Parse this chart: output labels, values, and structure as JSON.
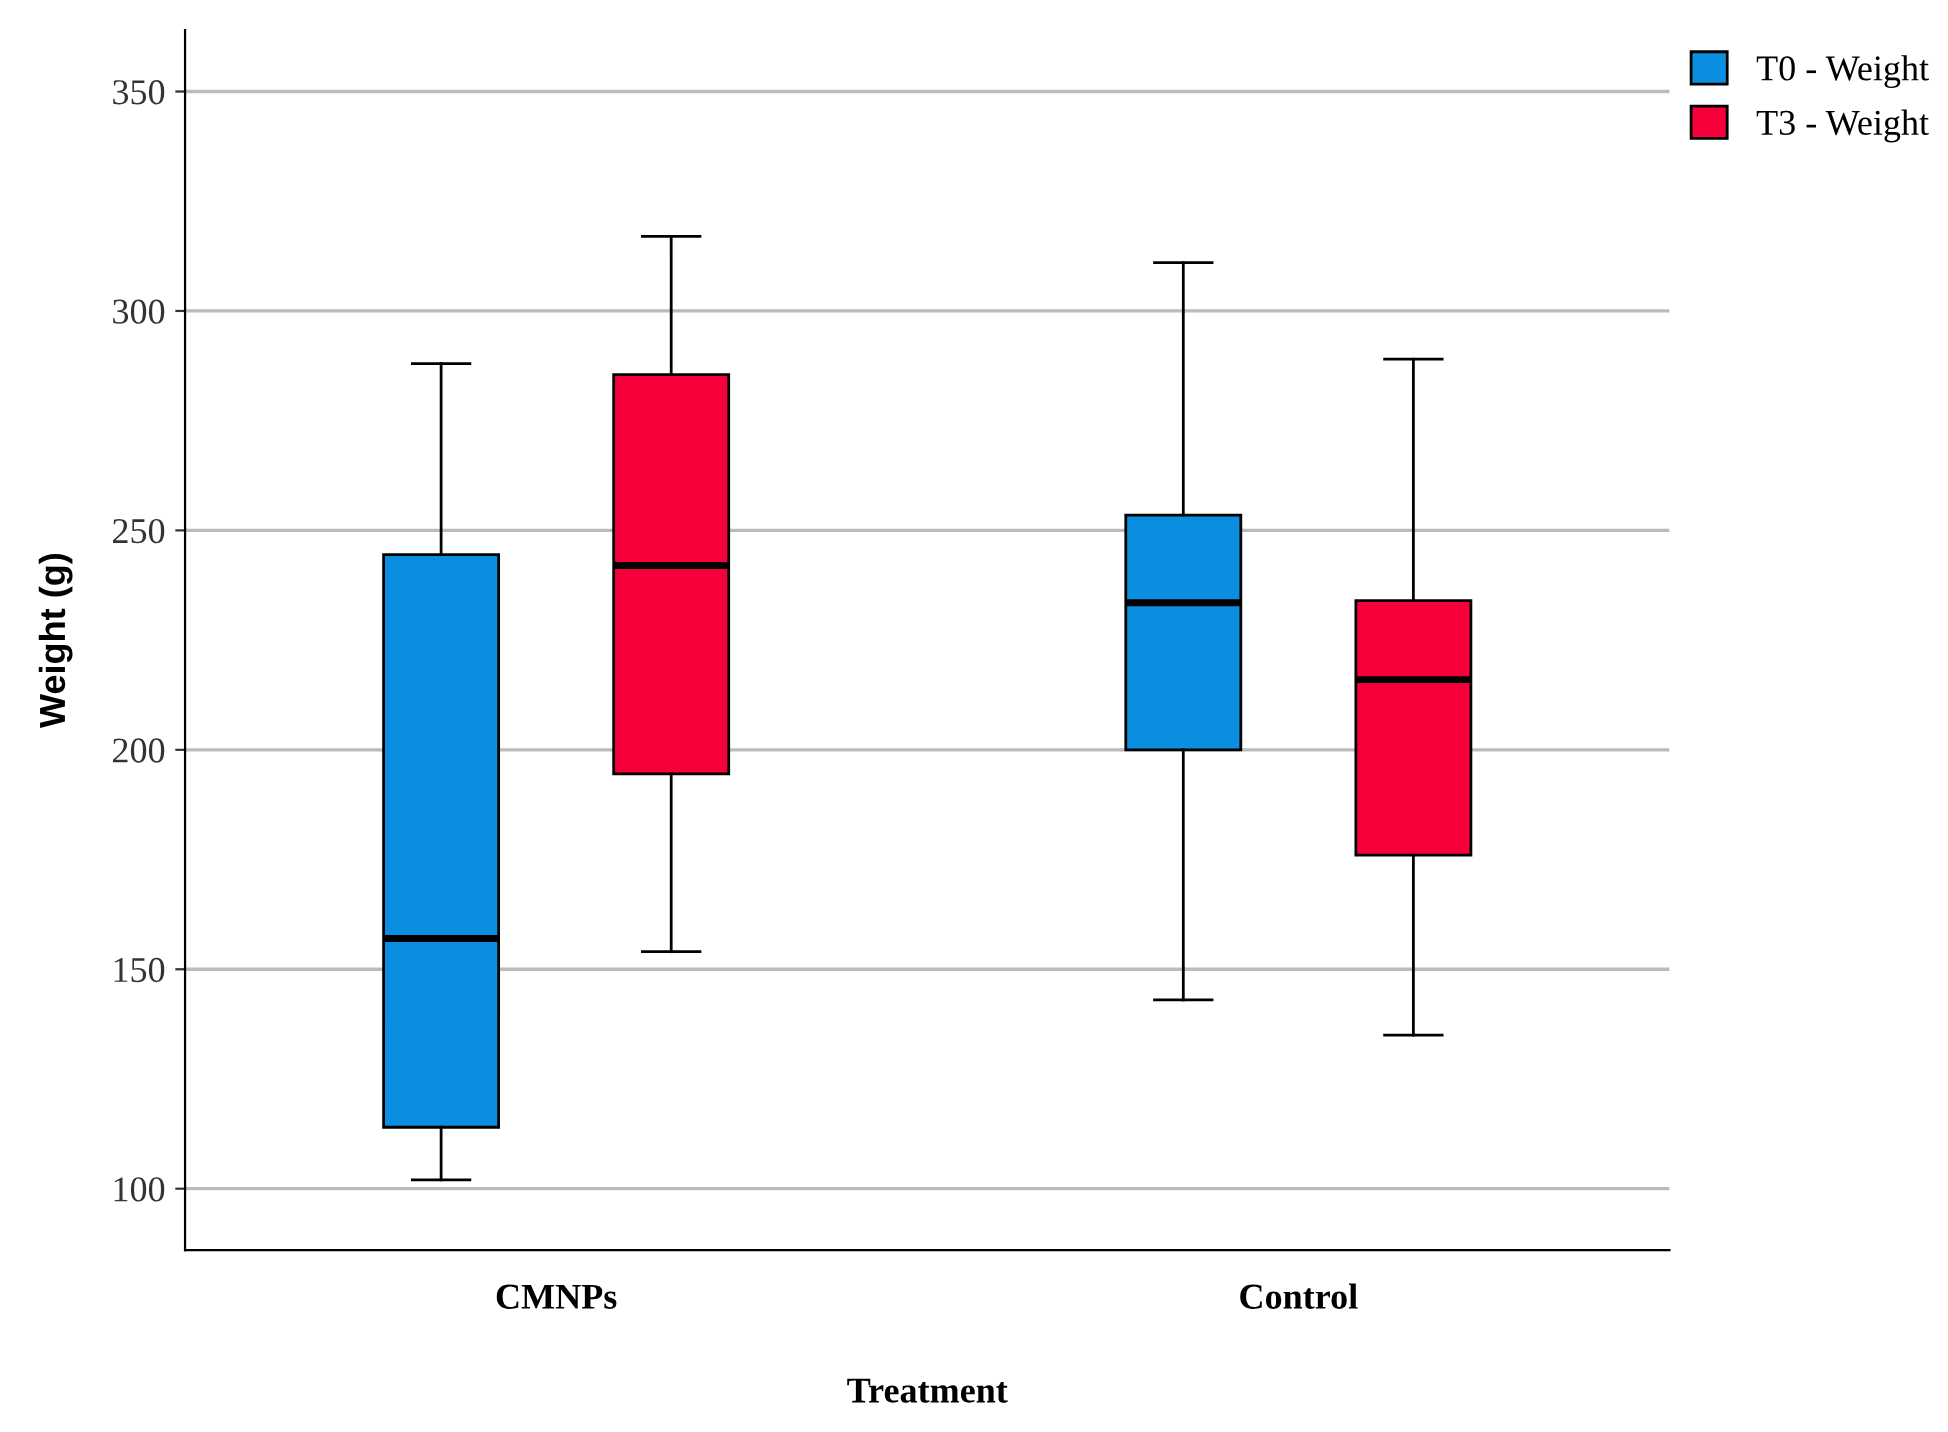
{
  "chart_data": {
    "type": "box",
    "xlabel": "Treatment",
    "ylabel": "Weight (g)",
    "categories": [
      "CMNPs",
      "Control"
    ],
    "series": [
      {
        "name": "T0 - Weight",
        "color": "#0a8fe0",
        "boxes": [
          {
            "low": 102,
            "q1": 114,
            "median": 157,
            "q3": 244.5,
            "high": 288
          },
          {
            "low": 143,
            "q1": 200,
            "median": 233.5,
            "q3": 253.5,
            "high": 311
          }
        ]
      },
      {
        "name": "T3 - Weight",
        "color": "#f5003a",
        "boxes": [
          {
            "low": 154,
            "q1": 194.5,
            "median": 242,
            "q3": 285.5,
            "high": 317
          },
          {
            "low": 135,
            "q1": 176,
            "median": 216,
            "q3": 234,
            "high": 289
          }
        ]
      }
    ],
    "ylim": [
      86,
      364
    ],
    "yticks": [
      100,
      150,
      200,
      250,
      300,
      350
    ],
    "grid": "y",
    "legend": "top right"
  }
}
